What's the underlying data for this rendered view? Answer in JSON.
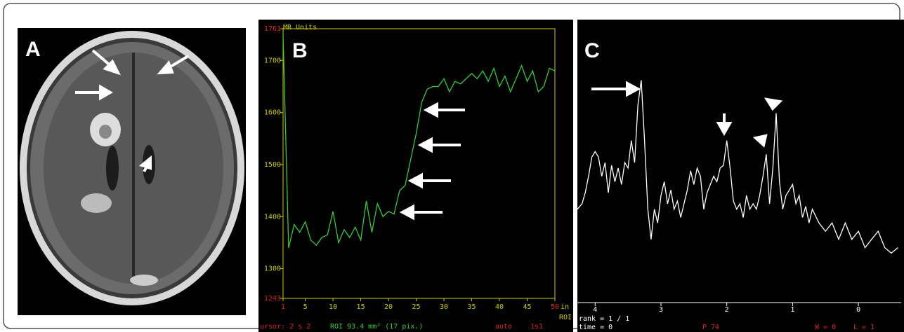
{
  "panel_labels": [
    "A",
    "B",
    "C"
  ],
  "chart_data": [
    {
      "type": "line",
      "y_unit_label": "MR Units",
      "x": [
        1,
        2,
        3,
        4,
        5,
        6,
        7,
        8,
        9,
        10,
        11,
        12,
        13,
        14,
        15,
        16,
        17,
        18,
        19,
        20,
        21,
        22,
        23,
        24,
        25,
        26,
        27,
        28,
        29,
        30,
        31,
        32,
        33,
        34,
        35,
        36,
        37,
        38,
        39,
        40,
        41,
        42,
        43,
        44,
        45,
        46,
        47,
        48,
        49,
        50
      ],
      "series": [
        {
          "color": "#33cc33",
          "values": [
            1750,
            1340,
            1385,
            1370,
            1390,
            1355,
            1345,
            1360,
            1365,
            1410,
            1350,
            1375,
            1360,
            1380,
            1355,
            1430,
            1370,
            1425,
            1400,
            1410,
            1405,
            1450,
            1460,
            1510,
            1560,
            1620,
            1645,
            1650,
            1650,
            1665,
            1640,
            1660,
            1655,
            1665,
            1675,
            1665,
            1680,
            1660,
            1685,
            1650,
            1670,
            1640,
            1665,
            1690,
            1660,
            1680,
            1640,
            1650,
            1685,
            1680
          ]
        }
      ],
      "xlim": [
        1,
        50
      ],
      "xticks": [
        1,
        5,
        10,
        15,
        20,
        25,
        30,
        35,
        40,
        45,
        50
      ],
      "ylim": [
        1243,
        1761
      ],
      "yticks": [
        1243,
        1300,
        1400,
        1500,
        1600,
        1700,
        1761
      ],
      "x_unit_label": "in",
      "roi_label": "ROI",
      "footer": [
        "ursor: 2 s 2",
        "ROI 93.4 mm² (17 pix.)",
        "auto",
        "1s1"
      ]
    },
    {
      "type": "line",
      "x": [
        4.27,
        4.2,
        4.15,
        4.1,
        4.05,
        4.0,
        3.95,
        3.9,
        3.85,
        3.8,
        3.75,
        3.7,
        3.65,
        3.6,
        3.55,
        3.5,
        3.45,
        3.4,
        3.35,
        3.3,
        3.25,
        3.2,
        3.15,
        3.1,
        3.05,
        3.0,
        2.95,
        2.9,
        2.85,
        2.8,
        2.75,
        2.7,
        2.65,
        2.6,
        2.55,
        2.5,
        2.45,
        2.4,
        2.35,
        2.3,
        2.25,
        2.2,
        2.15,
        2.1,
        2.05,
        2.0,
        1.95,
        1.9,
        1.85,
        1.8,
        1.75,
        1.7,
        1.65,
        1.6,
        1.55,
        1.5,
        1.45,
        1.4,
        1.35,
        1.3,
        1.25,
        1.2,
        1.15,
        1.1,
        1.05,
        1.0,
        0.95,
        0.9,
        0.85,
        0.8,
        0.75,
        0.7,
        0.6,
        0.5,
        0.4,
        0.3,
        0.2,
        0.1,
        0.0,
        -0.1,
        -0.2,
        -0.3,
        -0.4,
        -0.5,
        -0.6
      ],
      "series": [
        {
          "color": "#ffffff",
          "values": [
            34,
            36,
            40,
            46,
            53,
            55,
            53,
            46,
            51,
            40,
            50,
            44,
            49,
            43,
            51,
            49,
            59,
            51,
            72,
            81,
            59,
            34,
            23,
            34,
            29,
            39,
            44,
            36,
            41,
            34,
            37,
            31,
            36,
            41,
            48,
            43,
            49,
            46,
            34,
            40,
            43,
            46,
            44,
            49,
            50,
            59,
            49,
            37,
            34,
            36,
            31,
            39,
            34,
            36,
            34,
            39,
            46,
            54,
            36,
            49,
            69,
            44,
            34,
            39,
            41,
            43,
            36,
            39,
            31,
            35,
            29,
            34,
            29,
            26,
            29,
            23,
            29,
            23,
            26,
            20,
            23,
            26,
            20,
            18,
            20
          ]
        }
      ],
      "xlim": [
        4.27,
        -0.65
      ],
      "xticks": [
        4,
        3,
        2,
        1,
        0
      ],
      "ylim": [
        0,
        100
      ],
      "footer": [
        "rank = 1 / 1",
        "time = 0",
        "P 74",
        "W = 0",
        "L = 1"
      ]
    }
  ]
}
